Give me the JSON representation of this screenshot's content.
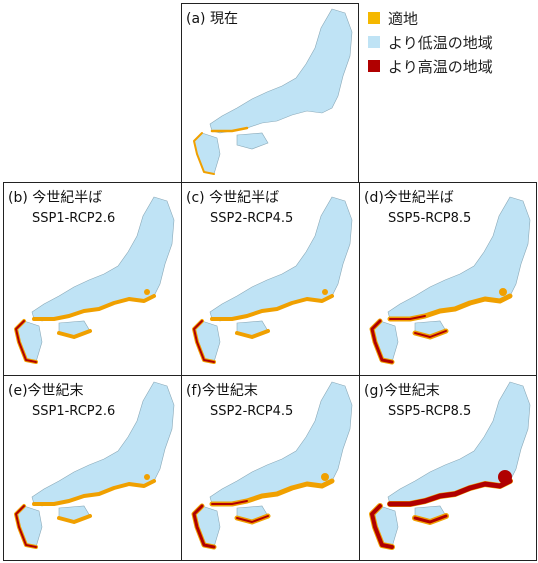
{
  "panels": [
    {
      "label": "(a) 現在"
    },
    {
      "label": "(b) 今世紀半ば",
      "subtitle": "SSP1-RCP2.6"
    },
    {
      "label": "(c) 今世紀半ば",
      "subtitle": "SSP2-RCP4.5"
    },
    {
      "label": "(d)今世紀半ば",
      "subtitle": "SSP5-RCP8.5"
    },
    {
      "label": "(e)今世紀末",
      "subtitle": "SSP1-RCP2.6"
    },
    {
      "label": "(f)今世紀末",
      "subtitle": "SSP2-RCP4.5"
    },
    {
      "label": "(g)今世紀末",
      "subtitle": "SSP5-RCP8.5"
    }
  ],
  "legend": [
    {
      "label": "適地",
      "color": "#f5b800"
    },
    {
      "label": "より低温の地域",
      "color": "#bfe3f5"
    },
    {
      "label": "より高温の地域",
      "color": "#b00000"
    }
  ]
}
